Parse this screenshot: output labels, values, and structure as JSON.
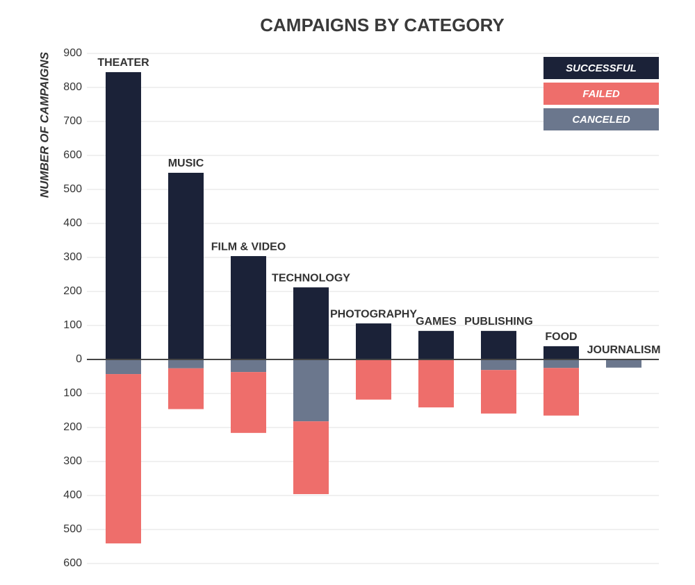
{
  "chart_data": {
    "type": "diverging-stacked-bar",
    "title": "CAMPAIGNS BY CATEGORY",
    "y_label": "NUMBER OF CAMPAIGNS",
    "categories": [
      "THEATER",
      "MUSIC",
      "FILM & VIDEO",
      "TECHNOLOGY",
      "PHOTOGRAPHY",
      "GAMES",
      "PUBLISHING",
      "FOOD",
      "JOURNALISM"
    ],
    "series": [
      {
        "name": "SUCCESSFUL",
        "color": "#1b2238",
        "values": [
          845,
          549,
          304,
          212,
          106,
          84,
          84,
          39,
          0
        ]
      },
      {
        "name": "FAILED",
        "color": "#ee6e6b",
        "values": [
          -498,
          -120,
          -179,
          -214,
          -118,
          -141,
          -128,
          -140,
          0
        ]
      },
      {
        "name": "CANCELED",
        "color": "#6b778d",
        "values": [
          -43,
          -26,
          -37,
          -182,
          0,
          0,
          -31,
          -25,
          -24
        ]
      }
    ],
    "stack_order": [
      "SUCCESSFUL",
      "CANCELED",
      "FAILED"
    ],
    "ylim": [
      -600,
      900
    ],
    "yticks": [
      {
        "value": -600,
        "label": "600"
      },
      {
        "value": -500,
        "label": "500"
      },
      {
        "value": -400,
        "label": "400"
      },
      {
        "value": -300,
        "label": "300"
      },
      {
        "value": -200,
        "label": "200"
      },
      {
        "value": -100,
        "label": "100"
      },
      0,
      100,
      200,
      300,
      400,
      500,
      600,
      700,
      800,
      900
    ],
    "grid": true,
    "legend": "upper right"
  }
}
